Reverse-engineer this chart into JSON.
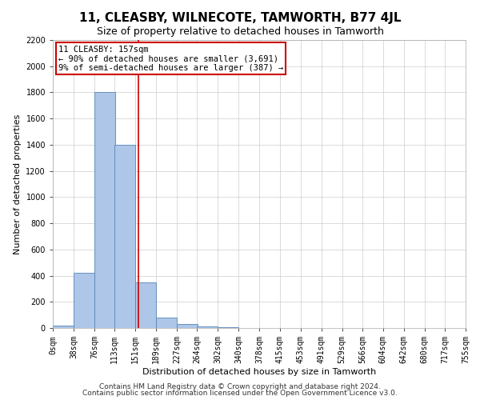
{
  "title": "11, CLEASBY, WILNECOTE, TAMWORTH, B77 4JL",
  "subtitle": "Size of property relative to detached houses in Tamworth",
  "xlabel": "Distribution of detached houses by size in Tamworth",
  "ylabel": "Number of detached properties",
  "footer_line1": "Contains HM Land Registry data © Crown copyright and database right 2024.",
  "footer_line2": "Contains public sector information licensed under the Open Government Licence v3.0.",
  "annotation_line1": "11 CLEASBY: 157sqm",
  "annotation_line2": "← 90% of detached houses are smaller (3,691)",
  "annotation_line3": "9% of semi-detached houses are larger (387) →",
  "bin_edges": [
    0,
    38,
    76,
    113,
    151,
    189,
    227,
    264,
    302,
    340,
    378,
    415,
    453,
    491,
    529,
    566,
    604,
    642,
    680,
    717,
    755
  ],
  "bar_heights": [
    20,
    420,
    1800,
    1400,
    350,
    80,
    30,
    10,
    5,
    2,
    1,
    0,
    0,
    0,
    0,
    0,
    0,
    0,
    0,
    0
  ],
  "bar_color": "#aec6e8",
  "bar_edge_color": "#5585b5",
  "vline_color": "#cc0000",
  "vline_x": 157,
  "annotation_box_color": "#cc0000",
  "background_color": "#ffffff",
  "grid_color": "#cccccc",
  "ylim": [
    0,
    2200
  ],
  "yticks": [
    0,
    200,
    400,
    600,
    800,
    1000,
    1200,
    1400,
    1600,
    1800,
    2000,
    2200
  ],
  "title_fontsize": 11,
  "subtitle_fontsize": 9,
  "axis_label_fontsize": 8,
  "tick_fontsize": 7,
  "annotation_fontsize": 7.5,
  "footer_fontsize": 6.5
}
